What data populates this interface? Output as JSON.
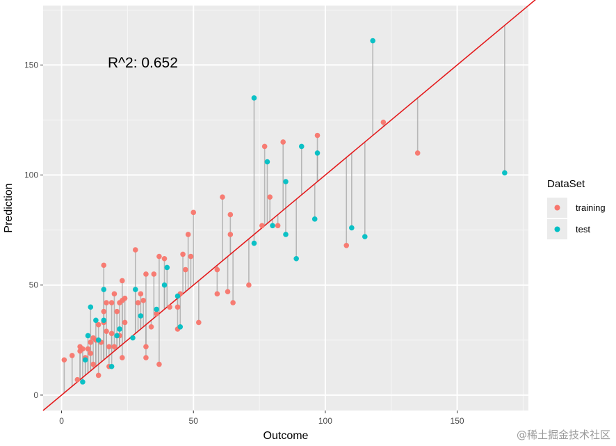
{
  "chart_data": {
    "type": "scatter",
    "title": "",
    "xlabel": "Outcome",
    "ylabel": "Prediction",
    "xlim": [
      -7,
      177
    ],
    "ylim": [
      -7,
      177
    ],
    "x_ticks": [
      0,
      50,
      100,
      150
    ],
    "y_ticks": [
      0,
      50,
      100,
      150
    ],
    "grid": true,
    "legend": {
      "title": "DataSet",
      "position": "right"
    },
    "annotation": "R^2: 0.652",
    "reference_line": {
      "slope": 1,
      "intercept": 0,
      "color": "#e41a1c"
    },
    "residual_segments": true,
    "series": [
      {
        "name": "training",
        "color": "#F8766D",
        "points": [
          [
            1,
            16
          ],
          [
            4,
            18
          ],
          [
            6,
            7
          ],
          [
            7,
            22
          ],
          [
            7,
            20
          ],
          [
            8,
            21
          ],
          [
            9,
            17
          ],
          [
            10,
            21
          ],
          [
            11,
            24
          ],
          [
            11,
            19
          ],
          [
            12,
            26
          ],
          [
            12,
            14
          ],
          [
            13,
            25
          ],
          [
            14,
            32
          ],
          [
            14,
            9
          ],
          [
            15,
            24
          ],
          [
            16,
            33
          ],
          [
            16,
            38
          ],
          [
            16,
            59
          ],
          [
            17,
            42
          ],
          [
            17,
            29
          ],
          [
            18,
            22
          ],
          [
            18,
            13
          ],
          [
            19,
            42
          ],
          [
            19,
            28
          ],
          [
            20,
            46
          ],
          [
            20,
            22
          ],
          [
            21,
            38
          ],
          [
            22,
            42
          ],
          [
            22,
            27
          ],
          [
            23,
            52
          ],
          [
            23,
            43
          ],
          [
            23,
            17
          ],
          [
            24,
            44
          ],
          [
            24,
            33
          ],
          [
            28,
            66
          ],
          [
            29,
            42
          ],
          [
            30,
            46
          ],
          [
            31,
            43
          ],
          [
            32,
            55
          ],
          [
            32,
            22
          ],
          [
            32,
            17
          ],
          [
            34,
            31
          ],
          [
            35,
            55
          ],
          [
            36,
            37
          ],
          [
            37,
            63
          ],
          [
            37,
            14
          ],
          [
            39,
            62
          ],
          [
            41,
            40
          ],
          [
            44,
            40
          ],
          [
            44,
            30
          ],
          [
            45,
            46
          ],
          [
            46,
            64
          ],
          [
            47,
            57
          ],
          [
            48,
            73
          ],
          [
            49,
            63
          ],
          [
            50,
            83
          ],
          [
            52,
            33
          ],
          [
            59,
            57
          ],
          [
            59,
            46
          ],
          [
            61,
            90
          ],
          [
            63,
            47
          ],
          [
            64,
            82
          ],
          [
            64,
            73
          ],
          [
            65,
            42
          ],
          [
            71,
            50
          ],
          [
            76,
            77
          ],
          [
            77,
            113
          ],
          [
            79,
            90
          ],
          [
            82,
            77
          ],
          [
            84,
            115
          ],
          [
            97,
            118
          ],
          [
            108,
            68
          ],
          [
            122,
            124
          ],
          [
            135,
            110
          ]
        ]
      },
      {
        "name": "test",
        "color": "#00BFC4",
        "points": [
          [
            8,
            6
          ],
          [
            9,
            16
          ],
          [
            10,
            27
          ],
          [
            11,
            40
          ],
          [
            13,
            34
          ],
          [
            14,
            25
          ],
          [
            16,
            34
          ],
          [
            16,
            48
          ],
          [
            19,
            13
          ],
          [
            21,
            27
          ],
          [
            22,
            30
          ],
          [
            27,
            26
          ],
          [
            28,
            48
          ],
          [
            30,
            36
          ],
          [
            36,
            39
          ],
          [
            39,
            50
          ],
          [
            40,
            58
          ],
          [
            44,
            45
          ],
          [
            45,
            31
          ],
          [
            73,
            135
          ],
          [
            73,
            69
          ],
          [
            78,
            106
          ],
          [
            80,
            77
          ],
          [
            85,
            97
          ],
          [
            85,
            73
          ],
          [
            89,
            62
          ],
          [
            91,
            113
          ],
          [
            96,
            80
          ],
          [
            97,
            110
          ],
          [
            110,
            76
          ],
          [
            115,
            72
          ],
          [
            118,
            161
          ],
          [
            168,
            101
          ]
        ]
      }
    ]
  },
  "watermark": "@稀土掘金技术社区"
}
